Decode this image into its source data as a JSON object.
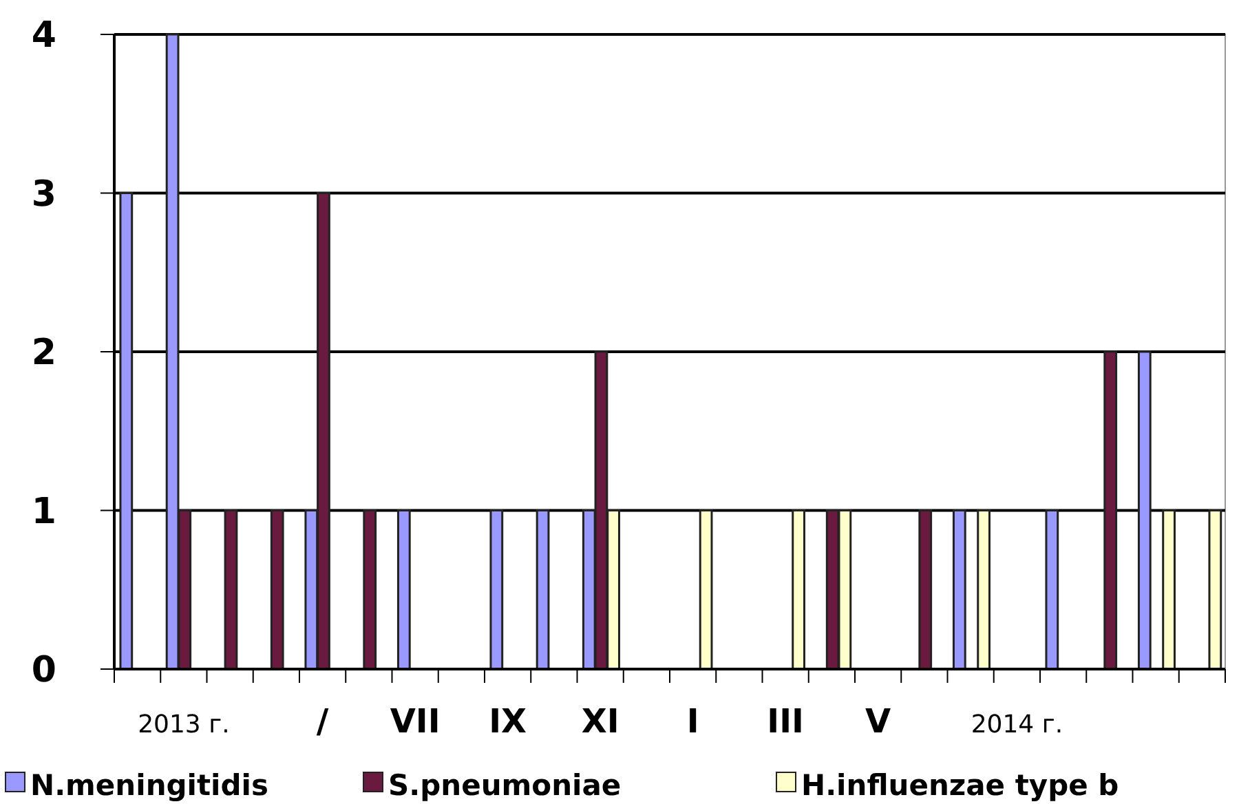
{
  "chart_data": {
    "type": "bar",
    "categories": [
      null,
      "2013 г.",
      null,
      null,
      "/",
      null,
      "VII",
      null,
      "IX",
      null,
      "XI",
      null,
      "I",
      null,
      "III",
      null,
      "V",
      null,
      null,
      "2014 г.",
      null,
      null,
      null,
      null
    ],
    "series": [
      {
        "name": "N.meningitidis",
        "color": "#9999ff",
        "values": [
          3,
          4,
          0,
          0,
          1,
          0,
          1,
          0,
          1,
          1,
          1,
          0,
          0,
          0,
          0,
          0,
          0,
          0,
          1,
          0,
          1,
          0,
          2,
          0
        ]
      },
      {
        "name": "S.pneumoniae",
        "color": "#6b1a3f",
        "values": [
          0,
          1,
          1,
          1,
          3,
          1,
          0,
          0,
          0,
          0,
          2,
          0,
          0,
          0,
          0,
          1,
          0,
          1,
          0,
          0,
          0,
          2,
          0,
          0
        ]
      },
      {
        "name": "H.influenzae type b",
        "color": "#ffffcc",
        "values": [
          0,
          0,
          0,
          0,
          0,
          0,
          0,
          0,
          0,
          0,
          1,
          0,
          1,
          0,
          1,
          1,
          0,
          0,
          1,
          0,
          0,
          0,
          1,
          1
        ]
      }
    ],
    "ylim": [
      0,
      4
    ],
    "yticks": [
      0,
      1,
      2,
      3,
      4
    ],
    "grid": "y",
    "legend": "bottom"
  }
}
